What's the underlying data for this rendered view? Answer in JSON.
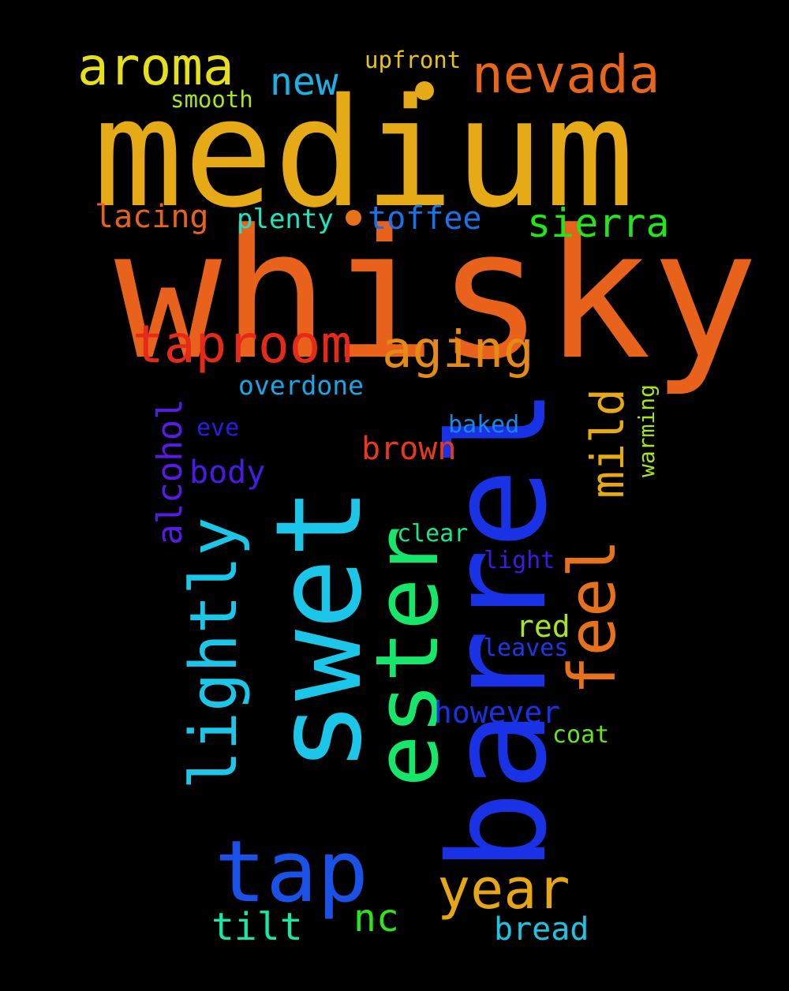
{
  "words": [
    {
      "key": "medium",
      "text": "medium",
      "color": "#e6aa16",
      "orientation": "horizontal"
    },
    {
      "key": "whisky",
      "text": "whisky",
      "color": "#e8621c",
      "orientation": "horizontal"
    },
    {
      "key": "swet",
      "text": "swet",
      "color": "#1bc6e8",
      "orientation": "vertical"
    },
    {
      "key": "barrel",
      "text": "barrel",
      "color": "#1a32e6",
      "orientation": "vertical"
    },
    {
      "key": "ester",
      "text": "ester",
      "color": "#16e66a",
      "orientation": "vertical"
    },
    {
      "key": "lightly",
      "text": "lightly",
      "color": "#1bc6e8",
      "orientation": "vertical"
    },
    {
      "key": "feel",
      "text": "feel",
      "color": "#e8721c",
      "orientation": "vertical"
    },
    {
      "key": "tap",
      "text": "tap",
      "color": "#1a52e8",
      "orientation": "horizontal"
    },
    {
      "key": "taproom",
      "text": "taproom",
      "color": "#e62a1a",
      "orientation": "horizontal"
    },
    {
      "key": "aging",
      "text": "aging",
      "color": "#e68a16",
      "orientation": "horizontal"
    },
    {
      "key": "aroma",
      "text": "aroma",
      "color": "#e6e01a",
      "orientation": "horizontal"
    },
    {
      "key": "nevada",
      "text": "nevada",
      "color": "#e8661c",
      "orientation": "horizontal"
    },
    {
      "key": "year",
      "text": "year",
      "color": "#e6a616",
      "orientation": "horizontal"
    },
    {
      "key": "mild",
      "text": "mild",
      "color": "#e6aa16",
      "orientation": "vertical"
    },
    {
      "key": "sierra",
      "text": "sierra",
      "color": "#22e61a",
      "orientation": "horizontal"
    },
    {
      "key": "alcohol",
      "text": "alcohol",
      "color": "#5a1ae6",
      "orientation": "vertical"
    },
    {
      "key": "new",
      "text": "new",
      "color": "#1ab2e6",
      "orientation": "horizontal"
    },
    {
      "key": "toffee",
      "text": "toffee",
      "color": "#1a72e8",
      "orientation": "horizontal"
    },
    {
      "key": "lacing",
      "text": "lacing",
      "color": "#e8621c",
      "orientation": "horizontal"
    },
    {
      "key": "plenty",
      "text": "plenty",
      "color": "#1ae6c2",
      "orientation": "horizontal"
    },
    {
      "key": "brown",
      "text": "brown",
      "color": "#e83a1a",
      "orientation": "horizontal"
    },
    {
      "key": "body",
      "text": "body",
      "color": "#4a1ae6",
      "orientation": "horizontal"
    },
    {
      "key": "however",
      "text": "however",
      "color": "#1a32e6",
      "orientation": "horizontal"
    },
    {
      "key": "tilt",
      "text": "tilt",
      "color": "#1ae6a6",
      "orientation": "horizontal"
    },
    {
      "key": "nc",
      "text": "nc",
      "color": "#2ae61a",
      "orientation": "horizontal"
    },
    {
      "key": "bread",
      "text": "bread",
      "color": "#1ac6e6",
      "orientation": "horizontal"
    },
    {
      "key": "red",
      "text": "red",
      "color": "#a6e61a",
      "orientation": "horizontal"
    },
    {
      "key": "overdone",
      "text": "overdone",
      "color": "#1aa6e6",
      "orientation": "horizontal"
    },
    {
      "key": "upfront",
      "text": "upfront",
      "color": "#e6c21a",
      "orientation": "horizontal"
    },
    {
      "key": "smooth",
      "text": "smooth",
      "color": "#a6e61a",
      "orientation": "horizontal"
    },
    {
      "key": "clear",
      "text": "clear",
      "color": "#1ae68a",
      "orientation": "horizontal"
    },
    {
      "key": "light",
      "text": "light",
      "color": "#3a1ae6",
      "orientation": "horizontal"
    },
    {
      "key": "leaves",
      "text": "leaves",
      "color": "#1a3ae6",
      "orientation": "horizontal"
    },
    {
      "key": "coat",
      "text": "coat",
      "color": "#62e61a",
      "orientation": "horizontal"
    },
    {
      "key": "baked",
      "text": "baked",
      "color": "#1a86e6",
      "orientation": "horizontal"
    },
    {
      "key": "eve",
      "text": "eve",
      "color": "#2a1ae6",
      "orientation": "horizontal"
    },
    {
      "key": "warming",
      "text": "warming",
      "color": "#a6e61a",
      "orientation": "vertical"
    }
  ],
  "dots": [
    {
      "key": "dot-medium",
      "color": "#e6aa16"
    },
    {
      "key": "dot-plenty",
      "color": "#e8721c"
    }
  ],
  "background_color": "#000000"
}
